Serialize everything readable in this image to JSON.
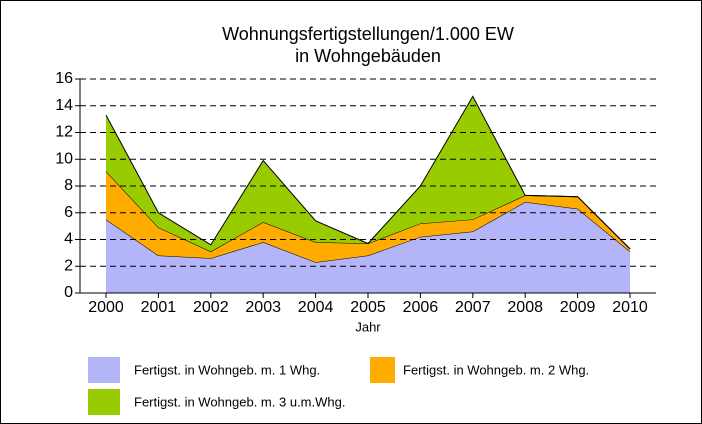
{
  "chart_data": {
    "type": "stacked_area",
    "title": [
      "Wohnungsfertigstellungen/1.000 EW",
      "in Wohngebäuden"
    ],
    "x_label": "Jahr",
    "categories": [
      "2000",
      "2001",
      "2002",
      "2003",
      "2004",
      "2005",
      "2006",
      "2007",
      "2008",
      "2009",
      "2010"
    ],
    "series": [
      {
        "name": "Fertigst. in Wohngeb. m. 1 Whg.",
        "color": "#b4b4f8",
        "values": [
          5.5,
          2.8,
          2.6,
          3.8,
          2.3,
          2.8,
          4.2,
          4.6,
          6.8,
          6.3,
          3.1
        ]
      },
      {
        "name": "Fertigst. in Wohngeb. m. 2 Whg.",
        "color": "#ffab00",
        "values": [
          3.6,
          2.1,
          0.5,
          1.5,
          1.5,
          0.9,
          1.0,
          0.9,
          0.5,
          0.9,
          0.2
        ]
      },
      {
        "name": "Fertigst. in Wohngeb. m. 3 u.m.Whg.",
        "color": "#99cc00",
        "values": [
          4.2,
          1.1,
          0.5,
          4.6,
          1.6,
          0.0,
          2.8,
          9.2,
          0.0,
          0.0,
          0.0
        ]
      }
    ],
    "ylim": [
      0,
      16
    ],
    "yticks": [
      0,
      2,
      4,
      6,
      8,
      10,
      12,
      14,
      16
    ],
    "grid": true
  }
}
